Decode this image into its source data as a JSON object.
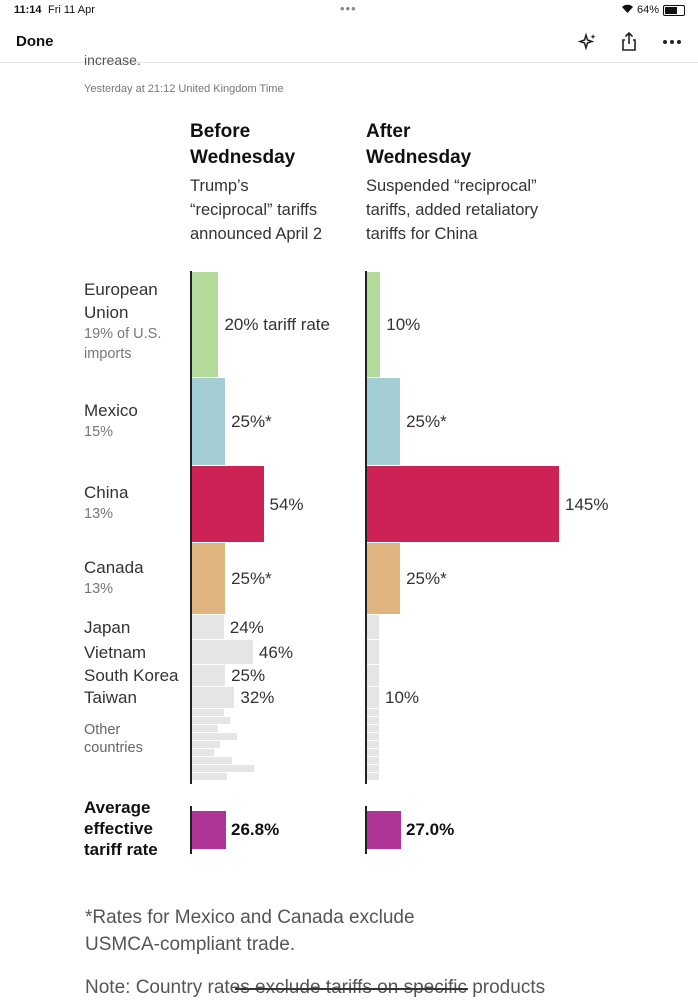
{
  "status": {
    "time": "11:14",
    "date": "Fri 11 Apr",
    "battery": "64%"
  },
  "nav": {
    "done_label": "Done"
  },
  "article": {
    "cut_text": "increase.",
    "timestamp": "Yesterday at 21:12 United Kingdom Time"
  },
  "columns": {
    "before": {
      "title_line1": "Before",
      "title_line2": "Wednesday",
      "sub": [
        "Trump’s",
        "“reciprocal” tariffs",
        "announced April 2"
      ]
    },
    "after": {
      "title_line1": "After",
      "title_line2": "Wednesday",
      "sub": [
        "Suspended “reciprocal”",
        "tariffs, added retaliatory",
        "tariffs for China"
      ]
    }
  },
  "chart_data": {
    "type": "bar",
    "orientation": "horizontal",
    "categories": [
      "European Union",
      "Mexico",
      "China",
      "Canada",
      "Japan",
      "Vietnam",
      "South Korea",
      "Taiwan"
    ],
    "import_shares": [
      "19% of U.S. imports",
      "15%",
      "13%",
      "13%"
    ],
    "colors": [
      "#b3d99b",
      "#a4cdd6",
      "#cc2255",
      "#e0b47f",
      "#e5e5e5",
      "#e5e5e5",
      "#e5e5e5",
      "#e5e5e5"
    ],
    "series": [
      {
        "values": [
          20,
          25,
          54,
          25,
          24,
          46,
          25,
          32
        ],
        "labels": [
          "20% tariff rate",
          "25%*",
          "54%",
          "25%*",
          "24%",
          "46%",
          "25%",
          "32%"
        ]
      },
      {
        "values": [
          10,
          25,
          145,
          25,
          10,
          10,
          10,
          10
        ],
        "labels": [
          "10%",
          "25%*",
          "145%",
          "25%*",
          "",
          "",
          "",
          "10%"
        ]
      }
    ],
    "other_label": "Other countries",
    "average": {
      "label": [
        "Average",
        "effective",
        "tariff rate"
      ],
      "values": [
        26.8,
        27.0
      ],
      "labels": [
        "26.8%",
        "27.0%"
      ],
      "color": "#b03596"
    }
  },
  "footnotes": {
    "asterisk": [
      "*Rates for Mexico and Canada exclude",
      "USMCA-compliant trade."
    ],
    "note": "Note: Country rates exclude tariffs on specific products"
  }
}
